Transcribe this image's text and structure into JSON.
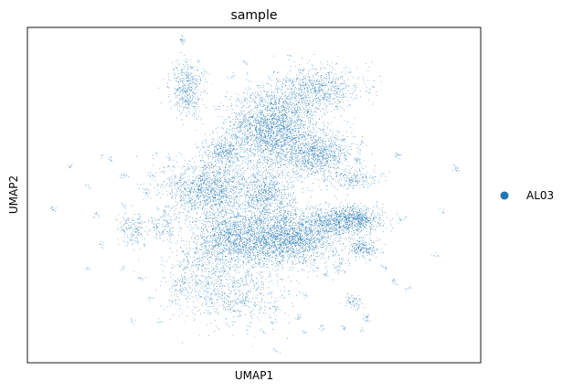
{
  "chart_data": {
    "type": "scatter",
    "title": "sample",
    "xlabel": "UMAP1",
    "ylabel": "UMAP2",
    "x_ticks": [],
    "y_ticks": [],
    "grid": false,
    "legend": {
      "placement": "right",
      "entries": [
        {
          "name": "AL03",
          "color": "#1f77b4"
        }
      ]
    },
    "series": [
      {
        "name": "AL03",
        "color": "#1f77b4",
        "clusters": [
          {
            "x": 0.54,
            "y": 0.7,
            "sx": 0.05,
            "sy": 0.06,
            "n": 2400
          },
          {
            "x": 0.64,
            "y": 0.62,
            "sx": 0.04,
            "sy": 0.03,
            "n": 900
          },
          {
            "x": 0.53,
            "y": 0.5,
            "sx": 0.03,
            "sy": 0.04,
            "n": 700
          },
          {
            "x": 0.4,
            "y": 0.52,
            "sx": 0.05,
            "sy": 0.045,
            "n": 1400
          },
          {
            "x": 0.46,
            "y": 0.37,
            "sx": 0.045,
            "sy": 0.045,
            "n": 1400
          },
          {
            "x": 0.58,
            "y": 0.37,
            "sx": 0.05,
            "sy": 0.04,
            "n": 1900
          },
          {
            "x": 0.68,
            "y": 0.42,
            "sx": 0.035,
            "sy": 0.025,
            "n": 600
          },
          {
            "x": 0.73,
            "y": 0.43,
            "sx": 0.03,
            "sy": 0.02,
            "n": 500
          },
          {
            "x": 0.64,
            "y": 0.82,
            "sx": 0.05,
            "sy": 0.035,
            "n": 800
          },
          {
            "x": 0.35,
            "y": 0.82,
            "sx": 0.018,
            "sy": 0.04,
            "n": 450
          },
          {
            "x": 0.74,
            "y": 0.34,
            "sx": 0.018,
            "sy": 0.015,
            "n": 220
          },
          {
            "x": 0.72,
            "y": 0.55,
            "sx": 0.03,
            "sy": 0.015,
            "n": 200
          },
          {
            "x": 0.23,
            "y": 0.4,
            "sx": 0.015,
            "sy": 0.025,
            "n": 160
          },
          {
            "x": 0.45,
            "y": 0.2,
            "sx": 0.06,
            "sy": 0.05,
            "n": 650
          },
          {
            "x": 0.43,
            "y": 0.63,
            "sx": 0.025,
            "sy": 0.02,
            "n": 300
          },
          {
            "x": 0.3,
            "y": 0.4,
            "sx": 0.02,
            "sy": 0.02,
            "n": 120
          },
          {
            "x": 0.38,
            "y": 0.3,
            "sx": 0.035,
            "sy": 0.05,
            "n": 300
          },
          {
            "x": 0.72,
            "y": 0.18,
            "sx": 0.01,
            "sy": 0.012,
            "n": 60
          },
          {
            "x": 0.69,
            "y": 0.29,
            "sx": 0.012,
            "sy": 0.015,
            "n": 40
          },
          {
            "x": 0.34,
            "y": 0.23,
            "sx": 0.02,
            "sy": 0.02,
            "n": 80
          }
        ],
        "small_groups": [
          [
            0.34,
            0.97,
            18
          ],
          [
            0.48,
            0.9,
            6
          ],
          [
            0.59,
            0.75,
            10
          ],
          [
            0.62,
            0.75,
            10
          ],
          [
            0.7,
            0.67,
            8
          ],
          [
            0.73,
            0.61,
            14
          ],
          [
            0.74,
            0.66,
            8
          ],
          [
            0.82,
            0.62,
            16
          ],
          [
            0.95,
            0.58,
            14
          ],
          [
            0.09,
            0.59,
            8
          ],
          [
            0.18,
            0.61,
            8
          ],
          [
            0.21,
            0.56,
            12
          ],
          [
            0.27,
            0.56,
            10
          ],
          [
            0.26,
            0.51,
            10
          ],
          [
            0.13,
            0.53,
            6
          ],
          [
            0.05,
            0.46,
            10
          ],
          [
            0.15,
            0.44,
            10
          ],
          [
            0.16,
            0.35,
            8
          ],
          [
            0.21,
            0.47,
            6
          ],
          [
            0.3,
            0.45,
            8
          ],
          [
            0.83,
            0.43,
            10
          ],
          [
            0.92,
            0.45,
            6
          ],
          [
            0.9,
            0.32,
            6
          ],
          [
            0.79,
            0.28,
            10
          ],
          [
            0.81,
            0.24,
            12
          ],
          [
            0.84,
            0.22,
            6
          ],
          [
            0.66,
            0.26,
            10
          ],
          [
            0.61,
            0.2,
            8
          ],
          [
            0.54,
            0.12,
            8
          ],
          [
            0.55,
            0.16,
            10
          ],
          [
            0.6,
            0.13,
            12
          ],
          [
            0.65,
            0.1,
            8
          ],
          [
            0.7,
            0.1,
            10
          ],
          [
            0.75,
            0.13,
            18
          ],
          [
            0.74,
            0.09,
            6
          ],
          [
            0.32,
            0.18,
            8
          ],
          [
            0.29,
            0.12,
            6
          ],
          [
            0.25,
            0.25,
            8
          ],
          [
            0.27,
            0.19,
            6
          ],
          [
            0.23,
            0.12,
            6
          ],
          [
            0.21,
            0.28,
            6
          ],
          [
            0.13,
            0.28,
            6
          ],
          [
            0.47,
            0.18,
            10
          ],
          [
            0.55,
            0.03,
            6
          ],
          [
            0.49,
            0.72,
            8
          ],
          [
            0.4,
            0.48,
            8
          ],
          [
            0.39,
            0.87,
            6
          ],
          [
            0.45,
            0.86,
            8
          ],
          [
            0.31,
            0.61,
            6
          ],
          [
            0.29,
            0.53,
            6
          ],
          [
            0.58,
            0.92,
            4
          ],
          [
            0.66,
            0.79,
            6
          ],
          [
            0.52,
            0.09,
            6
          ],
          [
            0.61,
            0.09,
            6
          ],
          [
            0.28,
            0.62,
            4
          ],
          [
            0.16,
            0.62,
            4
          ]
        ]
      }
    ]
  }
}
